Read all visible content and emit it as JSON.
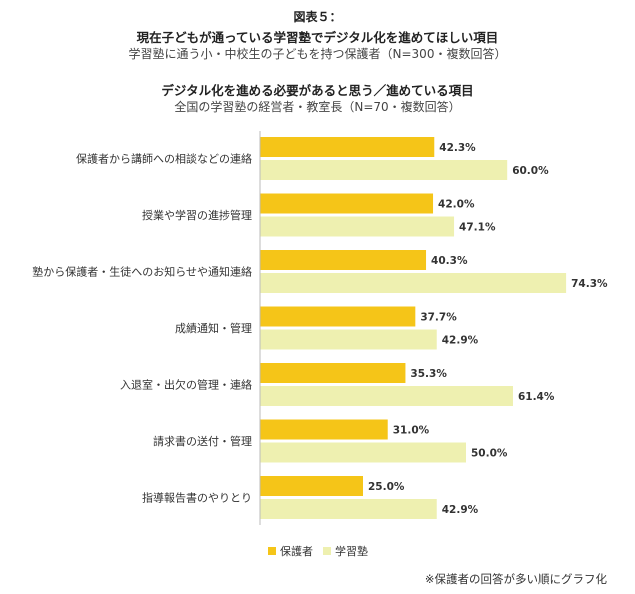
{
  "header": {
    "figure_label": "図表５：",
    "title1": "現在子どもが通っている学習塾でデジタル化を進めてほしい項目",
    "subtitle1": "学習塾に通う小・中校生の子どもを持つ保護者（N=300・複数回答）",
    "title2": "デジタル化を進める必要があると思う／進めている項目",
    "subtitle2": "全国の学習塾の経営者・教室長（N=70・複数回答）"
  },
  "chart_data": {
    "type": "bar",
    "orientation": "horizontal",
    "categories": [
      "保護者から講師への相談などの連絡",
      "授業や学習の進捗管理",
      "塾から保護者・生徒へのお知らせや通知連絡",
      "成績通知・管理",
      "入退室・出欠の管理・連絡",
      "請求書の送付・管理",
      "指導報告書のやりとり"
    ],
    "series": [
      {
        "name": "保護者",
        "values": [
          42.3,
          42.0,
          40.3,
          37.7,
          35.3,
          31.0,
          25.0
        ],
        "labels": [
          "42.3%",
          "42.0%",
          "40.3%",
          "37.7%",
          "35.3%",
          "31.0%",
          "25.0%"
        ],
        "color": "#f5c518"
      },
      {
        "name": "学習塾",
        "values": [
          60.0,
          47.1,
          74.3,
          42.9,
          61.4,
          50.0,
          42.9
        ],
        "labels": [
          "60.0%",
          "47.1%",
          "74.3%",
          "42.9%",
          "61.4%",
          "50.0%",
          "42.9%"
        ],
        "color": "#eef0b0"
      }
    ],
    "xlim": [
      0,
      100
    ],
    "legend_position": "bottom",
    "grid": false
  },
  "footnote": "※保護者の回答が多い順にグラフ化"
}
